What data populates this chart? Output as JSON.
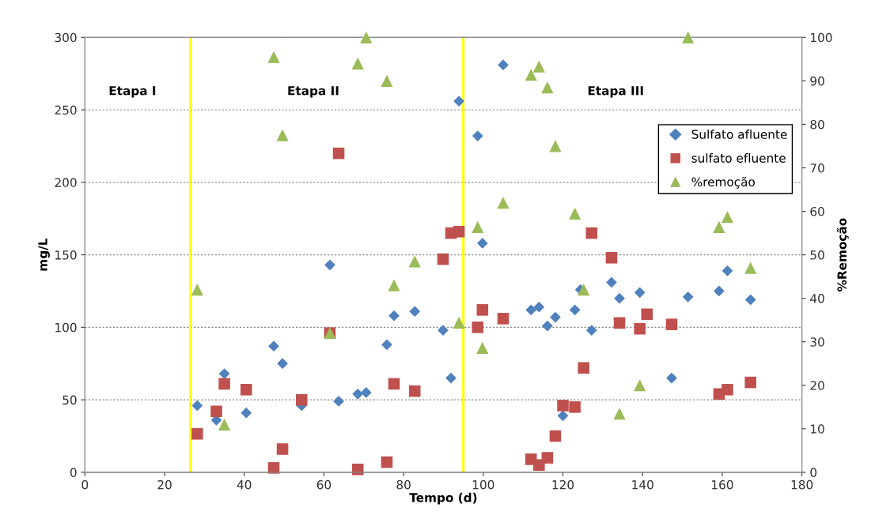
{
  "chart_data": {
    "type": "scatter",
    "xlabel": "Tempo (d)",
    "ylabel": "mg/L",
    "y2label": "%Remoção",
    "xlim": [
      0,
      180
    ],
    "xticks": [
      0,
      20,
      40,
      60,
      80,
      100,
      120,
      140,
      160,
      180
    ],
    "ylim": [
      0,
      300
    ],
    "yticks": [
      0,
      50,
      100,
      150,
      200,
      250,
      300
    ],
    "y2lim": [
      0,
      100
    ],
    "y2ticks": [
      0,
      10,
      20,
      30,
      40,
      50,
      60,
      70,
      80,
      90,
      100
    ],
    "grid": "y",
    "legend": "right",
    "series": [
      {
        "name": "Sulfato afluente",
        "color": "#4f81bd",
        "marker": "diamond",
        "x": [
          28.2,
          33,
          35,
          40.5,
          47.4,
          49.6,
          54.4,
          61.5,
          63.7,
          68.5,
          70.6,
          75.8,
          77.6,
          82.8,
          89.9,
          91.9,
          93.9,
          98.6,
          99.8,
          105,
          112,
          114,
          116.1,
          118.1,
          120,
          123,
          124.4,
          127.2,
          132.2,
          134.2,
          139.3,
          147.3,
          151.4,
          159.2,
          161.3,
          167.1
        ],
        "values": [
          46,
          36,
          68,
          41,
          87,
          75,
          46,
          143,
          49,
          54,
          55,
          88,
          108,
          111,
          98,
          65,
          256,
          232,
          158,
          281,
          112,
          114,
          101,
          107,
          39,
          112,
          126,
          98,
          131,
          120,
          124,
          65,
          121,
          125,
          139,
          119
        ]
      },
      {
        "name": "sulfato efluente",
        "color": "#c0504d",
        "marker": "square",
        "x": [
          28.2,
          33,
          35,
          40.5,
          47.4,
          49.6,
          54.4,
          61.5,
          63.7,
          68.5,
          75.8,
          77.6,
          82.8,
          89.9,
          91.9,
          93.9,
          98.6,
          99.8,
          105,
          112,
          114,
          116.1,
          118.1,
          120,
          123,
          125.2,
          127.2,
          132.2,
          134.2,
          139.3,
          141.1,
          147.3,
          159.2,
          161.3,
          167.1
        ],
        "values": [
          26.5,
          42,
          61,
          57,
          3,
          16,
          50,
          96,
          220,
          2,
          7,
          61,
          56,
          147,
          165,
          166,
          100,
          112,
          106,
          9,
          5,
          10,
          25,
          46,
          45,
          72,
          165,
          148,
          103,
          99,
          109,
          102,
          54,
          57,
          62
        ]
      },
      {
        "name": "%remoção",
        "color": "#9bbb59",
        "marker": "triangle",
        "axis": "y2",
        "x": [
          28.2,
          35,
          47.4,
          49.6,
          61.5,
          68.5,
          70.6,
          75.8,
          77.6,
          82.8,
          93.9,
          98.6,
          99.8,
          105,
          112,
          114,
          116.1,
          118.1,
          123,
          125.2,
          134.2,
          139.3,
          151.4,
          159.2,
          161.3,
          167.1
        ],
        "values": [
          42,
          11,
          95.5,
          77.5,
          32,
          94,
          100,
          90,
          43,
          48.5,
          34.4,
          56.4,
          28.6,
          62,
          91.4,
          93.3,
          88.5,
          75,
          59.5,
          42,
          13.5,
          20,
          100,
          56.4,
          58.7,
          47
        ]
      }
    ],
    "ref_lines": [
      {
        "axis": "x",
        "value": 26.5,
        "color": "#ffff00"
      },
      {
        "axis": "x",
        "value": 95,
        "color": "#ffff00"
      }
    ],
    "annotations": [
      "Etapa I",
      "Etapa II",
      "Etapa III"
    ]
  }
}
